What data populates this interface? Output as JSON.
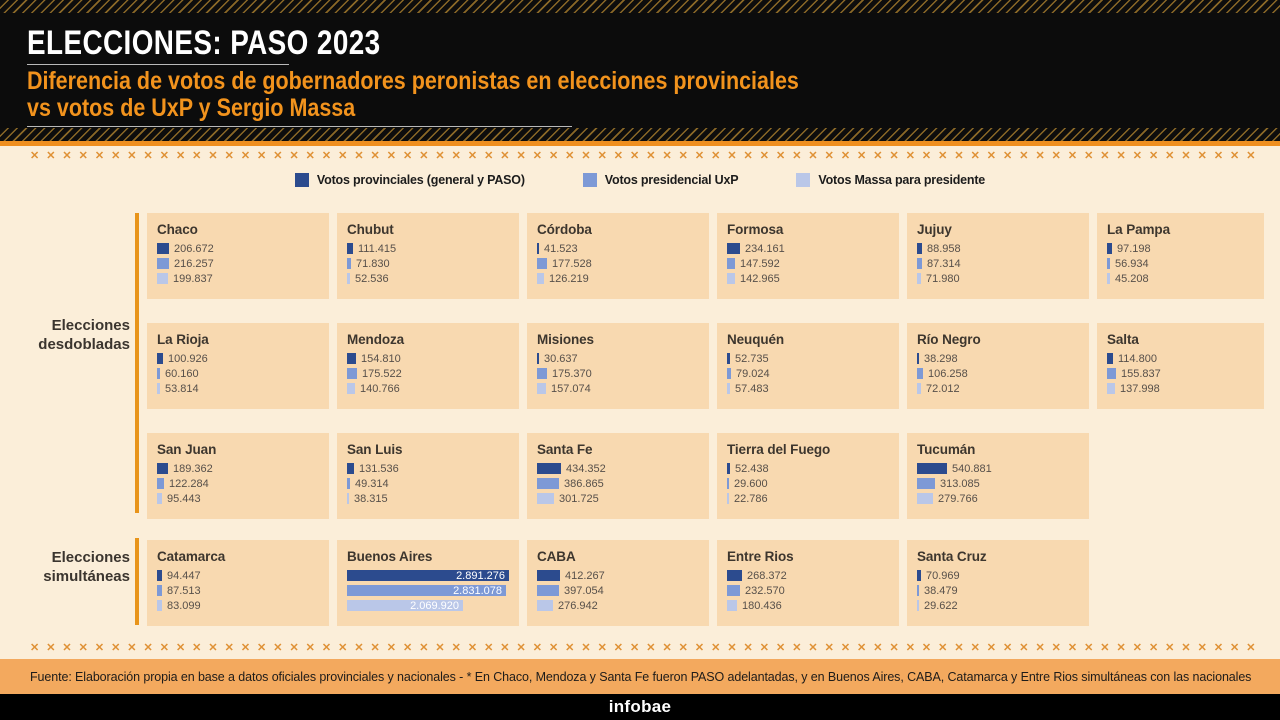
{
  "header": {
    "title": "ELECCIONES: PASO 2023",
    "subtitle_line1": "Diferencia de votos de gobernadores peronistas en elecciones provinciales",
    "subtitle_line2": "vs votos de UxP y Sergio Massa"
  },
  "legend": [
    {
      "label": "Votos provinciales (general y PASO)",
      "color": "#2c4b8e"
    },
    {
      "label": "Votos presidencial UxP",
      "color": "#7d99d6"
    },
    {
      "label": "Votos Massa para presidente",
      "color": "#bac7e8"
    }
  ],
  "chart_data": {
    "type": "bar",
    "title": "Diferencia de votos de gobernadores peronistas en elecciones provinciales vs votos de UxP y Sergio Massa",
    "series_labels": [
      "Votos provinciales (general y PASO)",
      "Votos presidencial UxP",
      "Votos Massa para presidente"
    ],
    "series_colors": [
      "#2c4b8e",
      "#7d99d6",
      "#bac7e8"
    ],
    "scale_max": 2891276,
    "sections": [
      {
        "label_line1": "Elecciones",
        "label_line2": "desdobladas",
        "rows": [
          [
            {
              "name": "Chaco",
              "values": [
                206672,
                216257,
                199837
              ],
              "display": [
                "206.672",
                "216.257",
                "199.837"
              ]
            },
            {
              "name": "Chubut",
              "values": [
                111415,
                71830,
                52536
              ],
              "display": [
                "111.415",
                "71.830",
                "52.536"
              ]
            },
            {
              "name": "Córdoba",
              "values": [
                41523,
                177528,
                126219
              ],
              "display": [
                "41.523",
                "177.528",
                "126.219"
              ]
            },
            {
              "name": "Formosa",
              "values": [
                234161,
                147592,
                142965
              ],
              "display": [
                "234.161",
                "147.592",
                "142.965"
              ]
            },
            {
              "name": "Jujuy",
              "values": [
                88958,
                87314,
                71980
              ],
              "display": [
                "88.958",
                "87.314",
                "71.980"
              ]
            },
            {
              "name": "La Pampa",
              "values": [
                97198,
                56934,
                45208
              ],
              "display": [
                "97.198",
                "56.934",
                "45.208"
              ]
            }
          ],
          [
            {
              "name": "La Rioja",
              "values": [
                100926,
                60160,
                53814
              ],
              "display": [
                "100.926",
                "60.160",
                "53.814"
              ]
            },
            {
              "name": "Mendoza",
              "values": [
                154810,
                175522,
                140766
              ],
              "display": [
                "154.810",
                "175.522",
                "140.766"
              ]
            },
            {
              "name": "Misiones",
              "values": [
                30637,
                175370,
                157074
              ],
              "display": [
                "30.637",
                "175.370",
                "157.074"
              ]
            },
            {
              "name": "Neuquén",
              "values": [
                52735,
                79024,
                57483
              ],
              "display": [
                "52.735",
                "79.024",
                "57.483"
              ]
            },
            {
              "name": "Río Negro",
              "values": [
                38298,
                106258,
                72012
              ],
              "display": [
                "38.298",
                "106.258",
                "72.012"
              ]
            },
            {
              "name": "Salta",
              "values": [
                114800,
                155837,
                137998
              ],
              "display": [
                "114.800",
                "155.837",
                "137.998"
              ]
            }
          ],
          [
            {
              "name": "San Juan",
              "values": [
                189362,
                122284,
                95443
              ],
              "display": [
                "189.362",
                "122.284",
                "95.443"
              ]
            },
            {
              "name": "San Luis",
              "values": [
                131536,
                49314,
                38315
              ],
              "display": [
                "131.536",
                "49.314",
                "38.315"
              ]
            },
            {
              "name": "Santa Fe",
              "values": [
                434352,
                386865,
                301725
              ],
              "display": [
                "434.352",
                "386.865",
                "301.725"
              ]
            },
            {
              "name": "Tierra del Fuego",
              "values": [
                52438,
                29600,
                22786
              ],
              "display": [
                "52.438",
                "29.600",
                "22.786"
              ]
            },
            {
              "name": "Tucumán",
              "values": [
                540881,
                313085,
                279766
              ],
              "display": [
                "540.881",
                "313.085",
                "279.766"
              ]
            }
          ]
        ]
      },
      {
        "label_line1": "Elecciones",
        "label_line2": "simultáneas",
        "rows": [
          [
            {
              "name": "Catamarca",
              "values": [
                94447,
                87513,
                83099
              ],
              "display": [
                "94.447",
                "87.513",
                "83.099"
              ]
            },
            {
              "name": "Buenos Aires",
              "values": [
                2891276,
                2831078,
                2069920
              ],
              "display": [
                "2.891.276",
                "2.831.078",
                "2.069.920"
              ]
            },
            {
              "name": "CABA",
              "values": [
                412267,
                397054,
                276942
              ],
              "display": [
                "412.267",
                "397.054",
                "276.942"
              ]
            },
            {
              "name": "Entre Rios",
              "values": [
                268372,
                232570,
                180436
              ],
              "display": [
                "268.372",
                "232.570",
                "180.436"
              ]
            },
            {
              "name": "Santa Cruz",
              "values": [
                70969,
                38479,
                29622
              ],
              "display": [
                "70.969",
                "38.479",
                "29.622"
              ]
            }
          ]
        ]
      }
    ]
  },
  "footer": {
    "source": "Fuente:  Elaboración propia en base a datos oficiales provinciales y nacionales - * En Chaco, Mendoza y Santa Fe fueron PASO adelantadas, y en Buenos Aires, CABA, Catamarca y Entre Rios simultáneas con las nacionales",
    "brand": "infobae"
  },
  "decor": {
    "separator_glyph": "✕",
    "separator_count": 92
  }
}
